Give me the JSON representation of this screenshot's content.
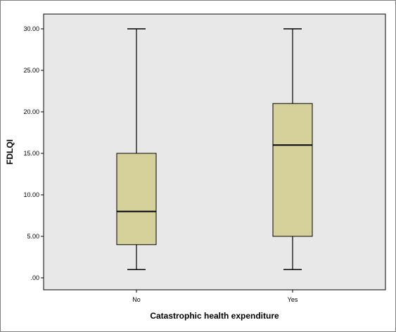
{
  "chart_data": {
    "type": "boxplot",
    "xlabel": "Catastrophic health expenditure",
    "ylabel": "FDLQI",
    "ylim": [
      0,
      30
    ],
    "y_ticks": [
      0,
      5,
      10,
      15,
      20,
      25,
      30
    ],
    "y_tick_labels": [
      ".00",
      "5.00",
      "10.00",
      "15.00",
      "20.00",
      "25.00",
      "30.00"
    ],
    "categories": [
      "No",
      "Yes"
    ],
    "boxes": [
      {
        "category": "No",
        "min": 1,
        "q1": 4,
        "median": 8,
        "q3": 15,
        "max": 30
      },
      {
        "category": "Yes",
        "min": 1,
        "q1": 5,
        "median": 16,
        "q3": 21,
        "max": 30
      }
    ],
    "grid": false,
    "colors": {
      "plot_background": "#e8e8e8",
      "box_fill": "#d6d19a",
      "line": "#000000"
    }
  }
}
